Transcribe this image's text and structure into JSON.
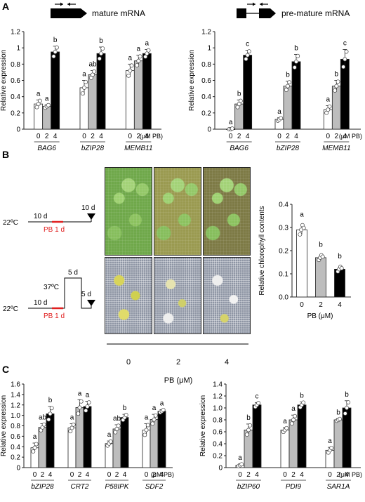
{
  "panel_labels": {
    "a": "A",
    "b": "B",
    "c": "C"
  },
  "panel_a": {
    "mature_label": "mature mRNA",
    "premature_label": "pre-mature mRNA",
    "x_unit": "(μM PB)",
    "ylabel": "Relative expression",
    "ytick_labels": [
      "0",
      "0.2",
      "0.4",
      "0.6",
      "0.8",
      "1.0",
      "1.2"
    ],
    "dose_labels": [
      "0",
      "2",
      "4"
    ]
  },
  "panel_b": {
    "temp_22": "22ºC",
    "temp_37": "37ºC",
    "days_10": "10 d",
    "days_5": "5 d",
    "pb_label": "PB 1 d",
    "pb_color": "#e02020",
    "plate_labels": [
      "0",
      "2",
      "4"
    ],
    "plates_xlabel": "PB (μM)"
  },
  "panel_c": {
    "x_unit": "(μM PB)",
    "ylabel": "Relative expression",
    "dose_labels": [
      "0",
      "2",
      "4"
    ]
  },
  "colors": {
    "dose0": "#ffffff",
    "dose2": "#bdbdbd",
    "dose4": "#000000",
    "axis": "#222222"
  },
  "chart_data": [
    {
      "type": "bar",
      "panel": "A-mature",
      "genes": [
        "BAG6",
        "bZIP28",
        "MEMB11"
      ],
      "doses": [
        "0",
        "2",
        "4"
      ],
      "values": [
        [
          0.31,
          0.28,
          0.95
        ],
        [
          0.51,
          0.67,
          0.93
        ],
        [
          0.72,
          0.84,
          0.93
        ]
      ],
      "errors": [
        [
          0.05,
          0.02,
          0.07
        ],
        [
          0.09,
          0.05,
          0.08
        ],
        [
          0.08,
          0.07,
          0.05
        ]
      ],
      "letters": [
        [
          "a",
          "a",
          "b"
        ],
        [
          "a",
          "ab",
          "b"
        ],
        [
          "a",
          "a",
          "a"
        ]
      ],
      "ylim": [
        0,
        1.2
      ],
      "yticks": [
        0,
        0.2,
        0.4,
        0.6,
        0.8,
        1.0,
        1.2
      ],
      "ylabel": "Relative expression",
      "xunit": "(μM PB)"
    },
    {
      "type": "bar",
      "panel": "A-premature",
      "genes": [
        "BAG6",
        "bZIP28",
        "MEMB11"
      ],
      "doses": [
        "0",
        "2",
        "4"
      ],
      "values": [
        [
          0.0,
          0.31,
          0.91
        ],
        [
          0.12,
          0.53,
          0.83
        ],
        [
          0.24,
          0.53,
          0.86
        ]
      ],
      "errors": [
        [
          0.01,
          0.05,
          0.06
        ],
        [
          0.02,
          0.06,
          0.09
        ],
        [
          0.05,
          0.07,
          0.12
        ]
      ],
      "letters": [
        [
          "a",
          "b",
          "c"
        ],
        [
          "a",
          "b",
          "b"
        ],
        [
          "a",
          "b",
          "c"
        ]
      ],
      "ylim": [
        0,
        1.2
      ],
      "yticks": [
        0,
        0.2,
        0.4,
        0.6,
        0.8,
        1.0,
        1.2
      ],
      "ylabel": "Relative expression",
      "xunit": "(μM PB)"
    },
    {
      "type": "bar",
      "panel": "B-chlorophyll",
      "categories": [
        "0",
        "2",
        "4"
      ],
      "values": [
        0.29,
        0.17,
        0.12
      ],
      "errors": [
        0.02,
        0.01,
        0.01
      ],
      "letters": [
        "a",
        "b",
        "b"
      ],
      "ylim": [
        0,
        0.4
      ],
      "yticks": [
        0,
        0.1,
        0.2,
        0.3,
        0.4
      ],
      "ytick_labels": [
        "0.0",
        "0.1",
        "0.2",
        "0.3",
        "0.4"
      ],
      "ylabel": "Relative chlorophyll contents",
      "xlabel": "PB (μM)"
    },
    {
      "type": "bar",
      "panel": "C-left",
      "genes": [
        "bZIP28",
        "CRT2",
        "P58IPK",
        "SDF2"
      ],
      "doses": [
        "0",
        "2",
        "4"
      ],
      "values": [
        [
          0.38,
          0.77,
          1.03
        ],
        [
          0.76,
          1.15,
          1.17
        ],
        [
          0.46,
          0.74,
          0.96
        ],
        [
          0.72,
          0.92,
          1.08
        ]
      ],
      "errors": [
        [
          0.09,
          0.07,
          0.14
        ],
        [
          0.08,
          0.15,
          0.1
        ],
        [
          0.05,
          0.08,
          0.06
        ],
        [
          0.12,
          0.1,
          0.03
        ]
      ],
      "letters": [
        [
          "a",
          "ab",
          "b"
        ],
        [
          "a",
          "a",
          "a"
        ],
        [
          "a",
          "ab",
          "b"
        ],
        [
          "a",
          "a",
          "a"
        ]
      ],
      "ylim": [
        0,
        1.6
      ],
      "yticks": [
        0,
        0.2,
        0.4,
        0.6,
        0.8,
        1.0,
        1.2,
        1.4,
        1.6
      ],
      "ytick_labels": [
        "0",
        "0.2",
        "0.4",
        "0.6",
        "0.8",
        "1.0",
        "1.2",
        "1.4",
        "1.6"
      ],
      "ylabel": "Relative expression",
      "xunit": "(μM PB)"
    },
    {
      "type": "bar",
      "panel": "C-right",
      "genes": [
        "bZIP60",
        "PDI9",
        "SAR1A"
      ],
      "doses": [
        "0",
        "2",
        "4"
      ],
      "values": [
        [
          0.04,
          0.63,
          1.05
        ],
        [
          0.63,
          0.8,
          1.05
        ],
        [
          0.29,
          0.8,
          1.0
        ]
      ],
      "errors": [
        [
          0.02,
          0.1,
          0.04
        ],
        [
          0.04,
          0.08,
          0.05
        ],
        [
          0.05,
          0.02,
          0.12
        ]
      ],
      "letters": [
        [
          "a",
          "b",
          "c"
        ],
        [
          "a",
          "a",
          "b"
        ],
        [
          "a",
          "b",
          "b"
        ]
      ],
      "ylim": [
        0,
        1.4
      ],
      "yticks": [
        0,
        0.2,
        0.4,
        0.6,
        0.8,
        1.0,
        1.2,
        1.4
      ],
      "ytick_labels": [
        "0",
        "0.2",
        "0.4",
        "0.6",
        "0.8",
        "1.0",
        "1.2",
        "1.4"
      ],
      "ylabel": "Relative expression",
      "xunit": "(μM PB)"
    }
  ]
}
